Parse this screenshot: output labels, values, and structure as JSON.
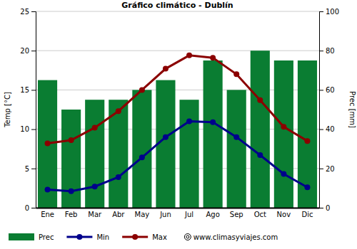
{
  "chart_data": {
    "type": "bar",
    "title": "Gráfico climático - Dublín",
    "ylabel": "Temp [°C]",
    "y2label": "Prec [mm]",
    "categories": [
      "Ene",
      "Feb",
      "Mar",
      "Abr",
      "May",
      "Jun",
      "Jul",
      "Ago",
      "Sep",
      "Oct",
      "Nov",
      "Dic"
    ],
    "series": [
      {
        "name": "Prec",
        "type": "bar",
        "axis": "y2",
        "color": "#0a7d32",
        "values": [
          65,
          50,
          55,
          55,
          60,
          65,
          55,
          75,
          60,
          80,
          75,
          75
        ]
      },
      {
        "name": "Min",
        "type": "line",
        "color": "#00008b",
        "marker": "circle",
        "values": [
          2.3,
          2.1,
          2.7,
          3.9,
          6.4,
          9.0,
          11.0,
          10.9,
          9.0,
          6.7,
          4.3,
          2.6
        ]
      },
      {
        "name": "Max",
        "type": "line",
        "color": "#8b0000",
        "marker": "circle",
        "values": [
          8.2,
          8.6,
          10.2,
          12.3,
          15.0,
          17.7,
          19.4,
          19.1,
          17.0,
          13.7,
          10.3,
          8.5
        ]
      }
    ],
    "ylim": [
      0,
      25
    ],
    "yticks": [
      0,
      5,
      10,
      15,
      20,
      25
    ],
    "y2lim": [
      0,
      100
    ],
    "y2ticks": [
      0,
      20,
      40,
      60,
      80,
      100
    ],
    "grid": true,
    "legend": "bottom",
    "annotations": [
      "www.climasyviajes.com"
    ]
  }
}
